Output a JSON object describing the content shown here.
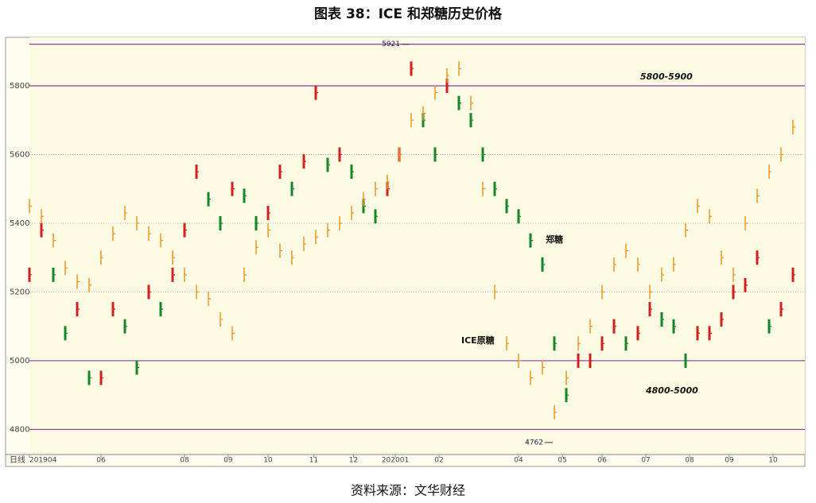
{
  "chart_data": {
    "type": "price",
    "title": "图表 38：ICE 和郑糖历史价格",
    "source": "资料来源：文华财经",
    "period_label": "日线",
    "x": [
      0,
      6,
      12,
      18,
      24,
      30,
      36,
      42,
      48,
      54,
      60,
      66,
      72,
      78,
      84,
      90,
      96,
      102,
      108,
      114,
      120,
      126,
      132,
      138,
      144,
      150,
      156,
      162,
      168,
      174,
      180,
      186,
      192,
      198,
      204,
      210,
      216,
      222,
      228,
      234,
      240,
      246,
      252,
      258,
      264,
      270,
      276,
      282,
      288,
      294,
      300,
      306,
      312,
      318,
      324,
      330,
      336,
      342,
      348,
      354,
      360,
      366,
      372,
      378,
      384
    ],
    "series": [
      {
        "name": "郑糖",
        "up_color": "#d21f1f",
        "down_color": "#17862a",
        "values": [
          5250,
          5380,
          5250,
          5080,
          5150,
          4950,
          4950,
          5150,
          5100,
          4980,
          5200,
          5150,
          5250,
          5380,
          5550,
          5470,
          5400,
          5500,
          5480,
          5400,
          5430,
          5550,
          5500,
          5580,
          5780,
          5570,
          5600,
          5550,
          5450,
          5420,
          5500,
          5600,
          5850,
          5700,
          5600,
          5800,
          5750,
          5700,
          5600,
          5500,
          5450,
          5420,
          5350,
          5280,
          5050,
          4900,
          5000,
          5000,
          5050,
          5100,
          5050,
          5080,
          5150,
          5120,
          5100,
          5000,
          5080,
          5080,
          5120,
          5200,
          5220,
          5300,
          5100,
          5150,
          5250
        ]
      },
      {
        "name": "ICE原糖",
        "color": "#e8961e",
        "values": [
          5450,
          5420,
          5350,
          5270,
          5230,
          5220,
          5300,
          5370,
          5430,
          5400,
          5370,
          5350,
          5300,
          5250,
          5200,
          5180,
          5120,
          5080,
          5250,
          5330,
          5380,
          5320,
          5300,
          5340,
          5360,
          5380,
          5400,
          5430,
          5470,
          5500,
          5520,
          5600,
          5700,
          5720,
          5780,
          5830,
          5850,
          5750,
          5500,
          5200,
          5050,
          5000,
          4950,
          4980,
          4850,
          4950,
          5050,
          5100,
          5200,
          5280,
          5320,
          5280,
          5200,
          5250,
          5280,
          5380,
          5450,
          5420,
          5300,
          5250,
          5400,
          5480,
          5550,
          5600,
          5680
        ]
      }
    ],
    "xlim": [
      0,
      390
    ],
    "xticks": [
      {
        "value": 0,
        "label": "201904"
      },
      {
        "value": 36,
        "label": "06"
      },
      {
        "value": 78,
        "label": "08"
      },
      {
        "value": 100,
        "label": "09"
      },
      {
        "value": 120,
        "label": "10"
      },
      {
        "value": 143,
        "label": "11"
      },
      {
        "value": 163,
        "label": "12"
      },
      {
        "value": 184,
        "label": "202001"
      },
      {
        "value": 206,
        "label": "02"
      },
      {
        "value": 246,
        "label": "04"
      },
      {
        "value": 268,
        "label": "05"
      },
      {
        "value": 288,
        "label": "06"
      },
      {
        "value": 310,
        "label": "07"
      },
      {
        "value": 332,
        "label": "08"
      },
      {
        "value": 352,
        "label": "09"
      },
      {
        "value": 374,
        "label": "10"
      }
    ],
    "ylim": [
      4727,
      5941
    ],
    "yticks": [
      4800,
      5000,
      5200,
      5400,
      5600,
      5800
    ],
    "grid": true,
    "hlines": [
      5921,
      5800,
      5000,
      4800
    ],
    "extremes": [
      {
        "x": 192,
        "value": 5921
      },
      {
        "x": 264,
        "value": 4762
      }
    ],
    "annotations": [
      "5800-5900",
      "4800-5000",
      "郑糖",
      "ICE原糖"
    ]
  }
}
